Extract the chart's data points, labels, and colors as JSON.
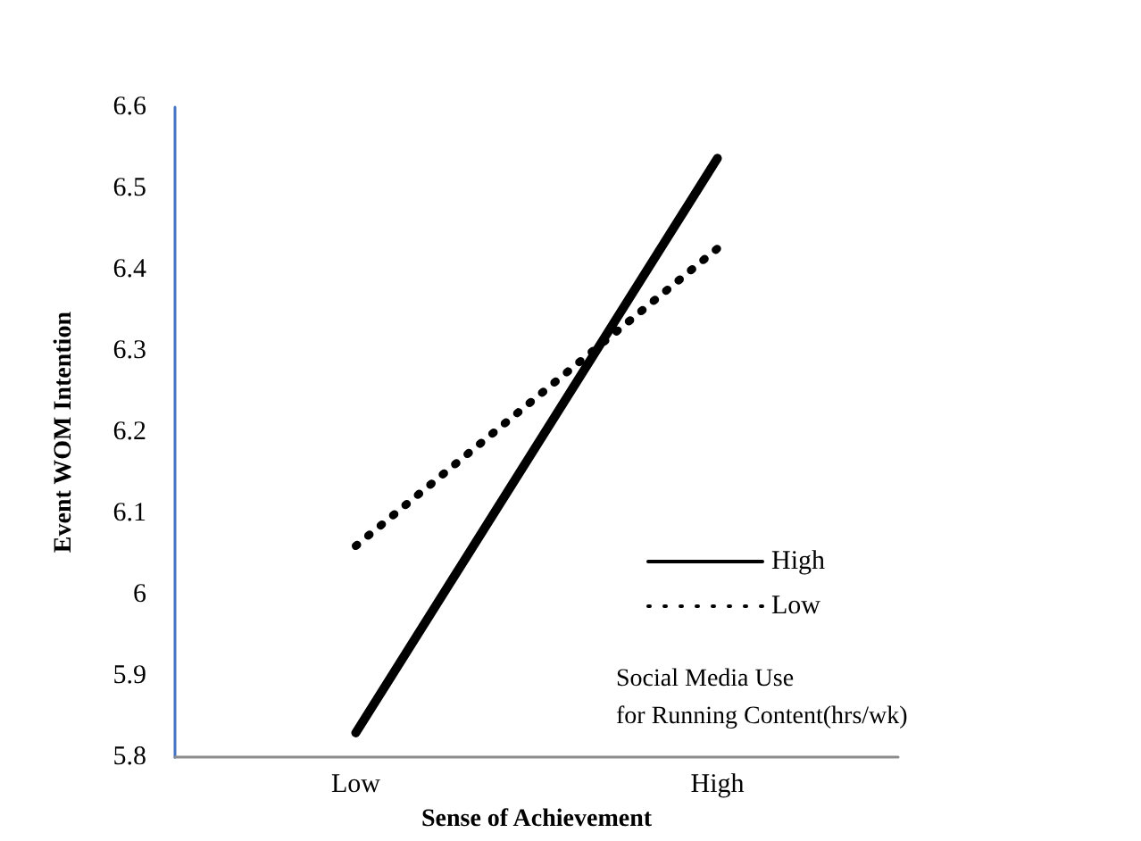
{
  "chart_data": {
    "type": "line",
    "xlabel": "Sense of Achievement",
    "ylabel": "Event WOM Intention",
    "legend_title": "Social Media Use\nfor Running Content(hrs/wk)",
    "categories": [
      "Low",
      "High"
    ],
    "series": [
      {
        "name": "High",
        "color": "#000000",
        "line_style": "solid",
        "values": [
          5.83,
          6.537
        ]
      },
      {
        "name": "Low",
        "color": "#000000",
        "line_style": "dotted",
        "values": [
          6.06,
          6.426
        ]
      }
    ],
    "ylim": [
      5.8,
      6.6
    ],
    "yticks": [
      5.8,
      5.9,
      6,
      6.1,
      6.2,
      6.3,
      6.4,
      6.5,
      6.6
    ],
    "grid": false,
    "legend": "bottom right",
    "marker": "none"
  }
}
